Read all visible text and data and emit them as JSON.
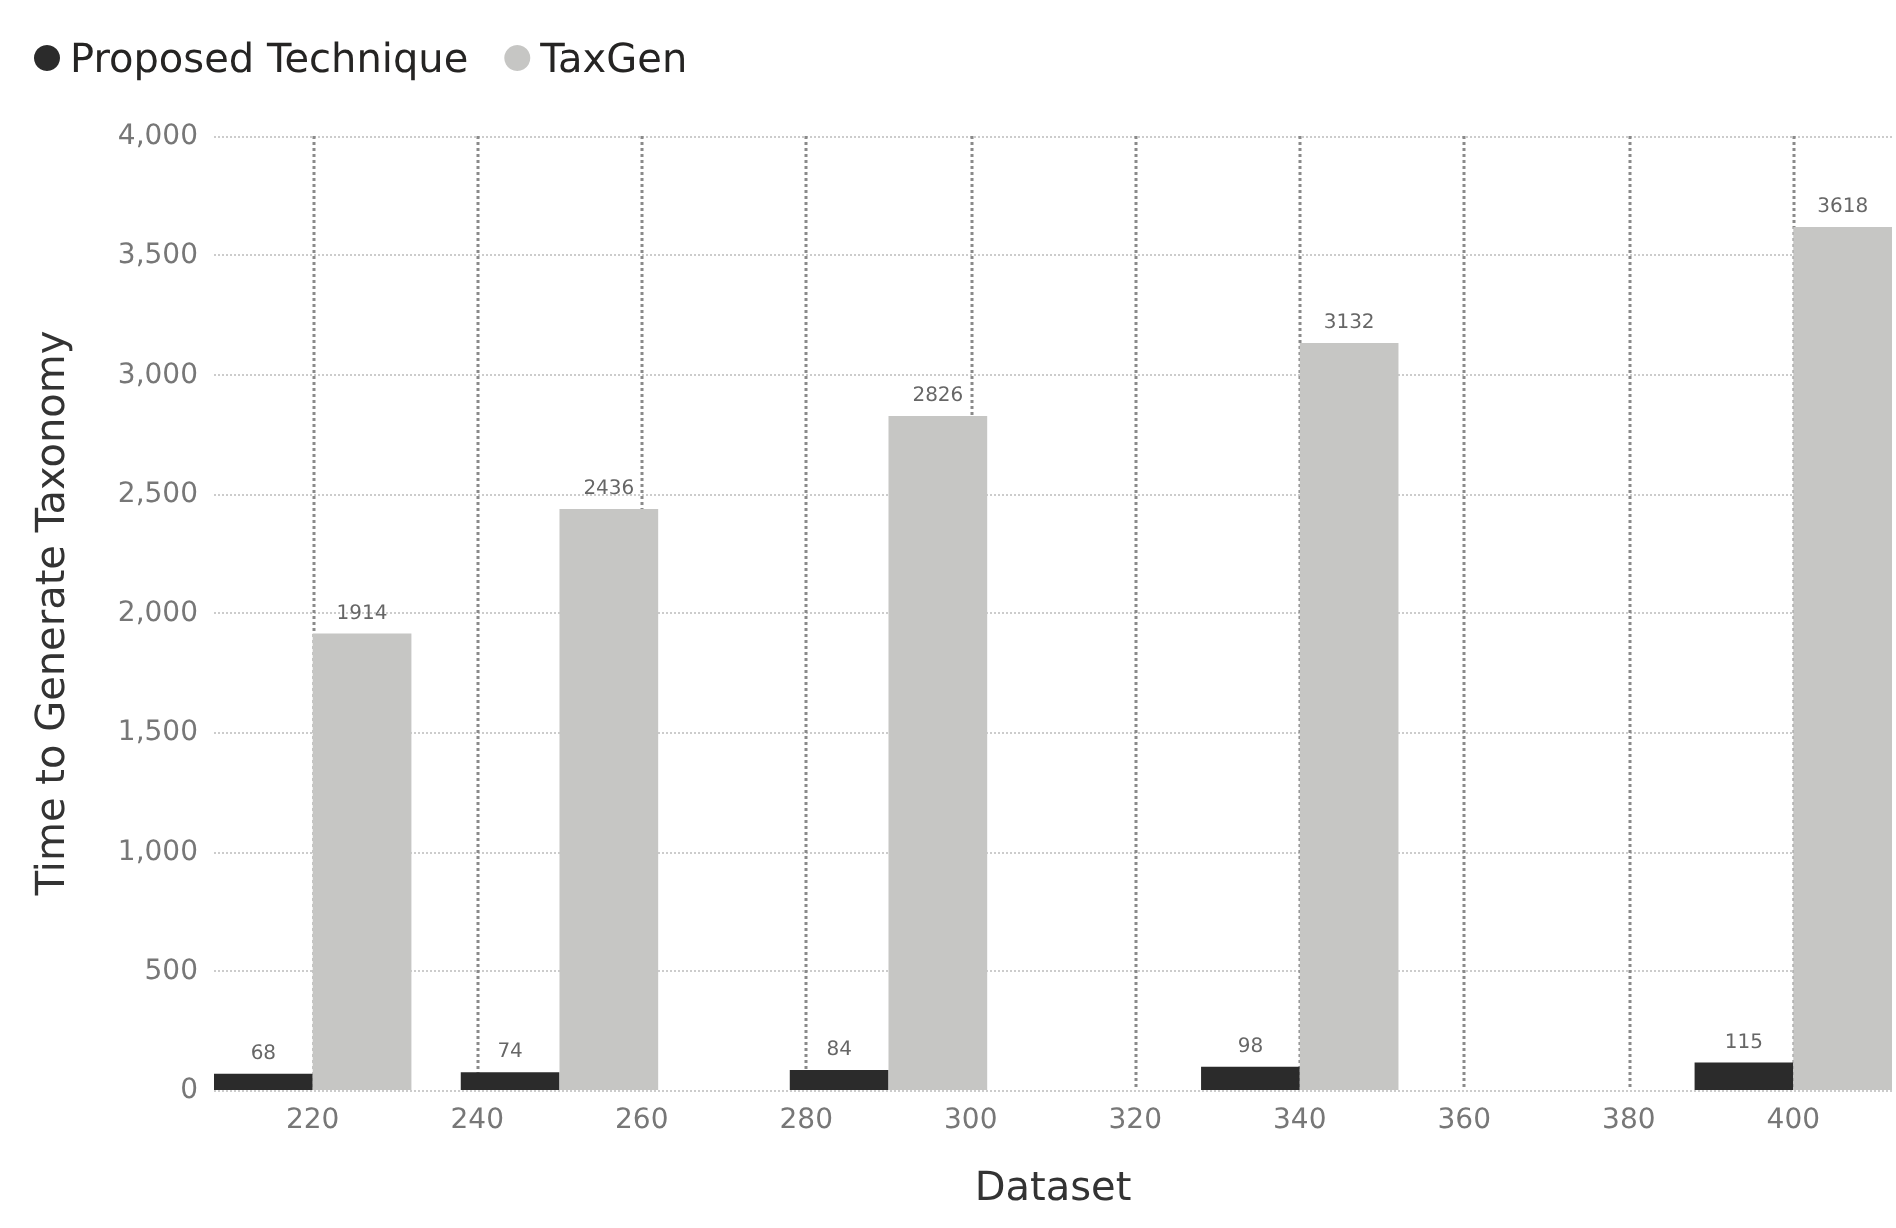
{
  "chart_data": {
    "type": "bar",
    "xlabel": "Dataset",
    "ylabel": "Time to Generate Taxonomy",
    "x": [
      220,
      250,
      290,
      340,
      400
    ],
    "series": [
      {
        "name": "Proposed Technique",
        "color": "#2b2b2b",
        "values": [
          68,
          74,
          84,
          98,
          115
        ]
      },
      {
        "name": "TaxGen",
        "color": "#c6c6c4",
        "values": [
          1914,
          2436,
          2826,
          3132,
          3618
        ]
      }
    ],
    "xlim": [
      208,
      412
    ],
    "xticks": [
      220,
      240,
      260,
      280,
      300,
      320,
      340,
      360,
      380,
      400
    ],
    "ylim": [
      0,
      4000
    ],
    "yticks": [
      0,
      500,
      {
        "value": 1000,
        "label": "1,000"
      },
      {
        "value": 1500,
        "label": "1,500"
      },
      {
        "value": 2000,
        "label": "2,000"
      },
      {
        "value": 2500,
        "label": "2,500"
      },
      {
        "value": 3000,
        "label": "3,000"
      },
      {
        "value": 3500,
        "label": "3,500"
      },
      {
        "value": 4000,
        "label": "4,000"
      }
    ],
    "grid": true,
    "legend": "top left",
    "data_labels": true
  }
}
